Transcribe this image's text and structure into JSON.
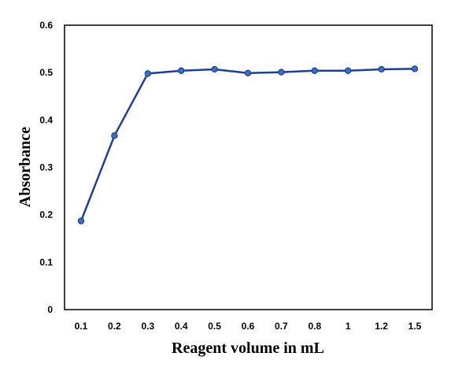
{
  "chart_data": {
    "type": "line",
    "categories": [
      "0.1",
      "0.2",
      "0.3",
      "0.4",
      "0.5",
      "0.6",
      "0.7",
      "0.8",
      "1",
      "1.2",
      "1.5"
    ],
    "series": [
      {
        "values": [
          0.187,
          0.367,
          0.498,
          0.504,
          0.507,
          0.499,
          0.501,
          0.504,
          0.504,
          0.507,
          0.508
        ]
      }
    ],
    "xlabel": "Reagent volume in mL",
    "ylabel": "Absorbance",
    "ylim": [
      0,
      0.6
    ],
    "yticks": [
      "0",
      "0.1",
      "0.2",
      "0.3",
      "0.4",
      "0.5",
      "0.6"
    ],
    "grid": false,
    "legend": "none",
    "colors": {
      "line": "#1f3f8f",
      "marker_fill": "#3a6fc4",
      "marker_stroke": "#1f3f8f",
      "frame": "#000000"
    }
  }
}
